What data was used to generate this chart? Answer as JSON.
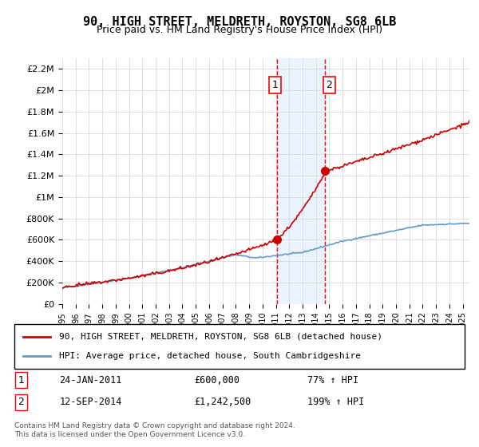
{
  "title": "90, HIGH STREET, MELDRETH, ROYSTON, SG8 6LB",
  "subtitle": "Price paid vs. HM Land Registry's House Price Index (HPI)",
  "legend_line1": "90, HIGH STREET, MELDRETH, ROYSTON, SG8 6LB (detached house)",
  "legend_line2": "HPI: Average price, detached house, South Cambridgeshire",
  "annotation1_label": "1",
  "annotation1_date": "24-JAN-2011",
  "annotation1_price": "£600,000",
  "annotation1_hpi": "77% ↑ HPI",
  "annotation1_year": 2011.07,
  "annotation1_value": 600000,
  "annotation2_label": "2",
  "annotation2_date": "12-SEP-2014",
  "annotation2_price": "£1,242,500",
  "annotation2_hpi": "199% ↑ HPI",
  "annotation2_year": 2014.7,
  "annotation2_value": 1242500,
  "footer": "Contains HM Land Registry data © Crown copyright and database right 2024.\nThis data is licensed under the Open Government Licence v3.0.",
  "red_line_color": "#cc0000",
  "blue_line_color": "#6699cc",
  "shading_color": "#ddeeff",
  "marker_color": "#cc0000",
  "ylim": [
    0,
    2300000
  ],
  "yticks": [
    0,
    200000,
    400000,
    600000,
    800000,
    1000000,
    1200000,
    1400000,
    1600000,
    1800000,
    2000000,
    2200000
  ],
  "ytick_labels": [
    "£0",
    "£200K",
    "£400K",
    "£600K",
    "£800K",
    "£1M",
    "£1.2M",
    "£1.4M",
    "£1.6M",
    "£1.8M",
    "£2M",
    "£2.2M"
  ],
  "xmin": 1995,
  "xmax": 2025.5,
  "xtick_years": [
    1995,
    1996,
    1997,
    1998,
    1999,
    2000,
    2001,
    2002,
    2003,
    2004,
    2005,
    2006,
    2007,
    2008,
    2009,
    2010,
    2011,
    2012,
    2013,
    2014,
    2015,
    2016,
    2017,
    2018,
    2019,
    2020,
    2021,
    2022,
    2023,
    2024,
    2025
  ]
}
